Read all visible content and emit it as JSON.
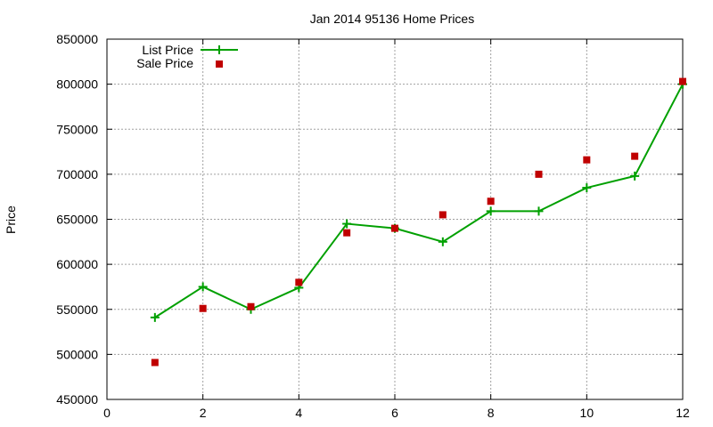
{
  "chart_data": {
    "type": "line",
    "title": "Jan 2014 95136 Home Prices",
    "xlabel": "",
    "ylabel": "Price",
    "xlim": [
      0,
      12
    ],
    "ylim": [
      450000,
      850000
    ],
    "x_ticks": [
      0,
      2,
      4,
      6,
      8,
      10,
      12
    ],
    "y_ticks": [
      450000,
      500000,
      550000,
      600000,
      650000,
      700000,
      750000,
      800000,
      850000
    ],
    "grid": true,
    "legend_position": "top-left",
    "series": [
      {
        "name": "List Price",
        "style": "line-plus-markers",
        "color": "#00a000",
        "x": [
          1,
          2,
          3,
          4,
          5,
          6,
          7,
          8,
          9,
          10,
          11,
          12
        ],
        "y": [
          541000,
          575000,
          550000,
          574000,
          645000,
          640000,
          625000,
          659000,
          659000,
          685000,
          698000,
          800000
        ]
      },
      {
        "name": "Sale Price",
        "style": "square-markers",
        "color": "#c00000",
        "x": [
          1,
          2,
          3,
          4,
          5,
          6,
          7,
          8,
          9,
          10,
          11,
          12
        ],
        "y": [
          491000,
          551000,
          553000,
          580000,
          635000,
          640000,
          655000,
          670000,
          700000,
          716000,
          720000,
          803000
        ]
      }
    ]
  }
}
